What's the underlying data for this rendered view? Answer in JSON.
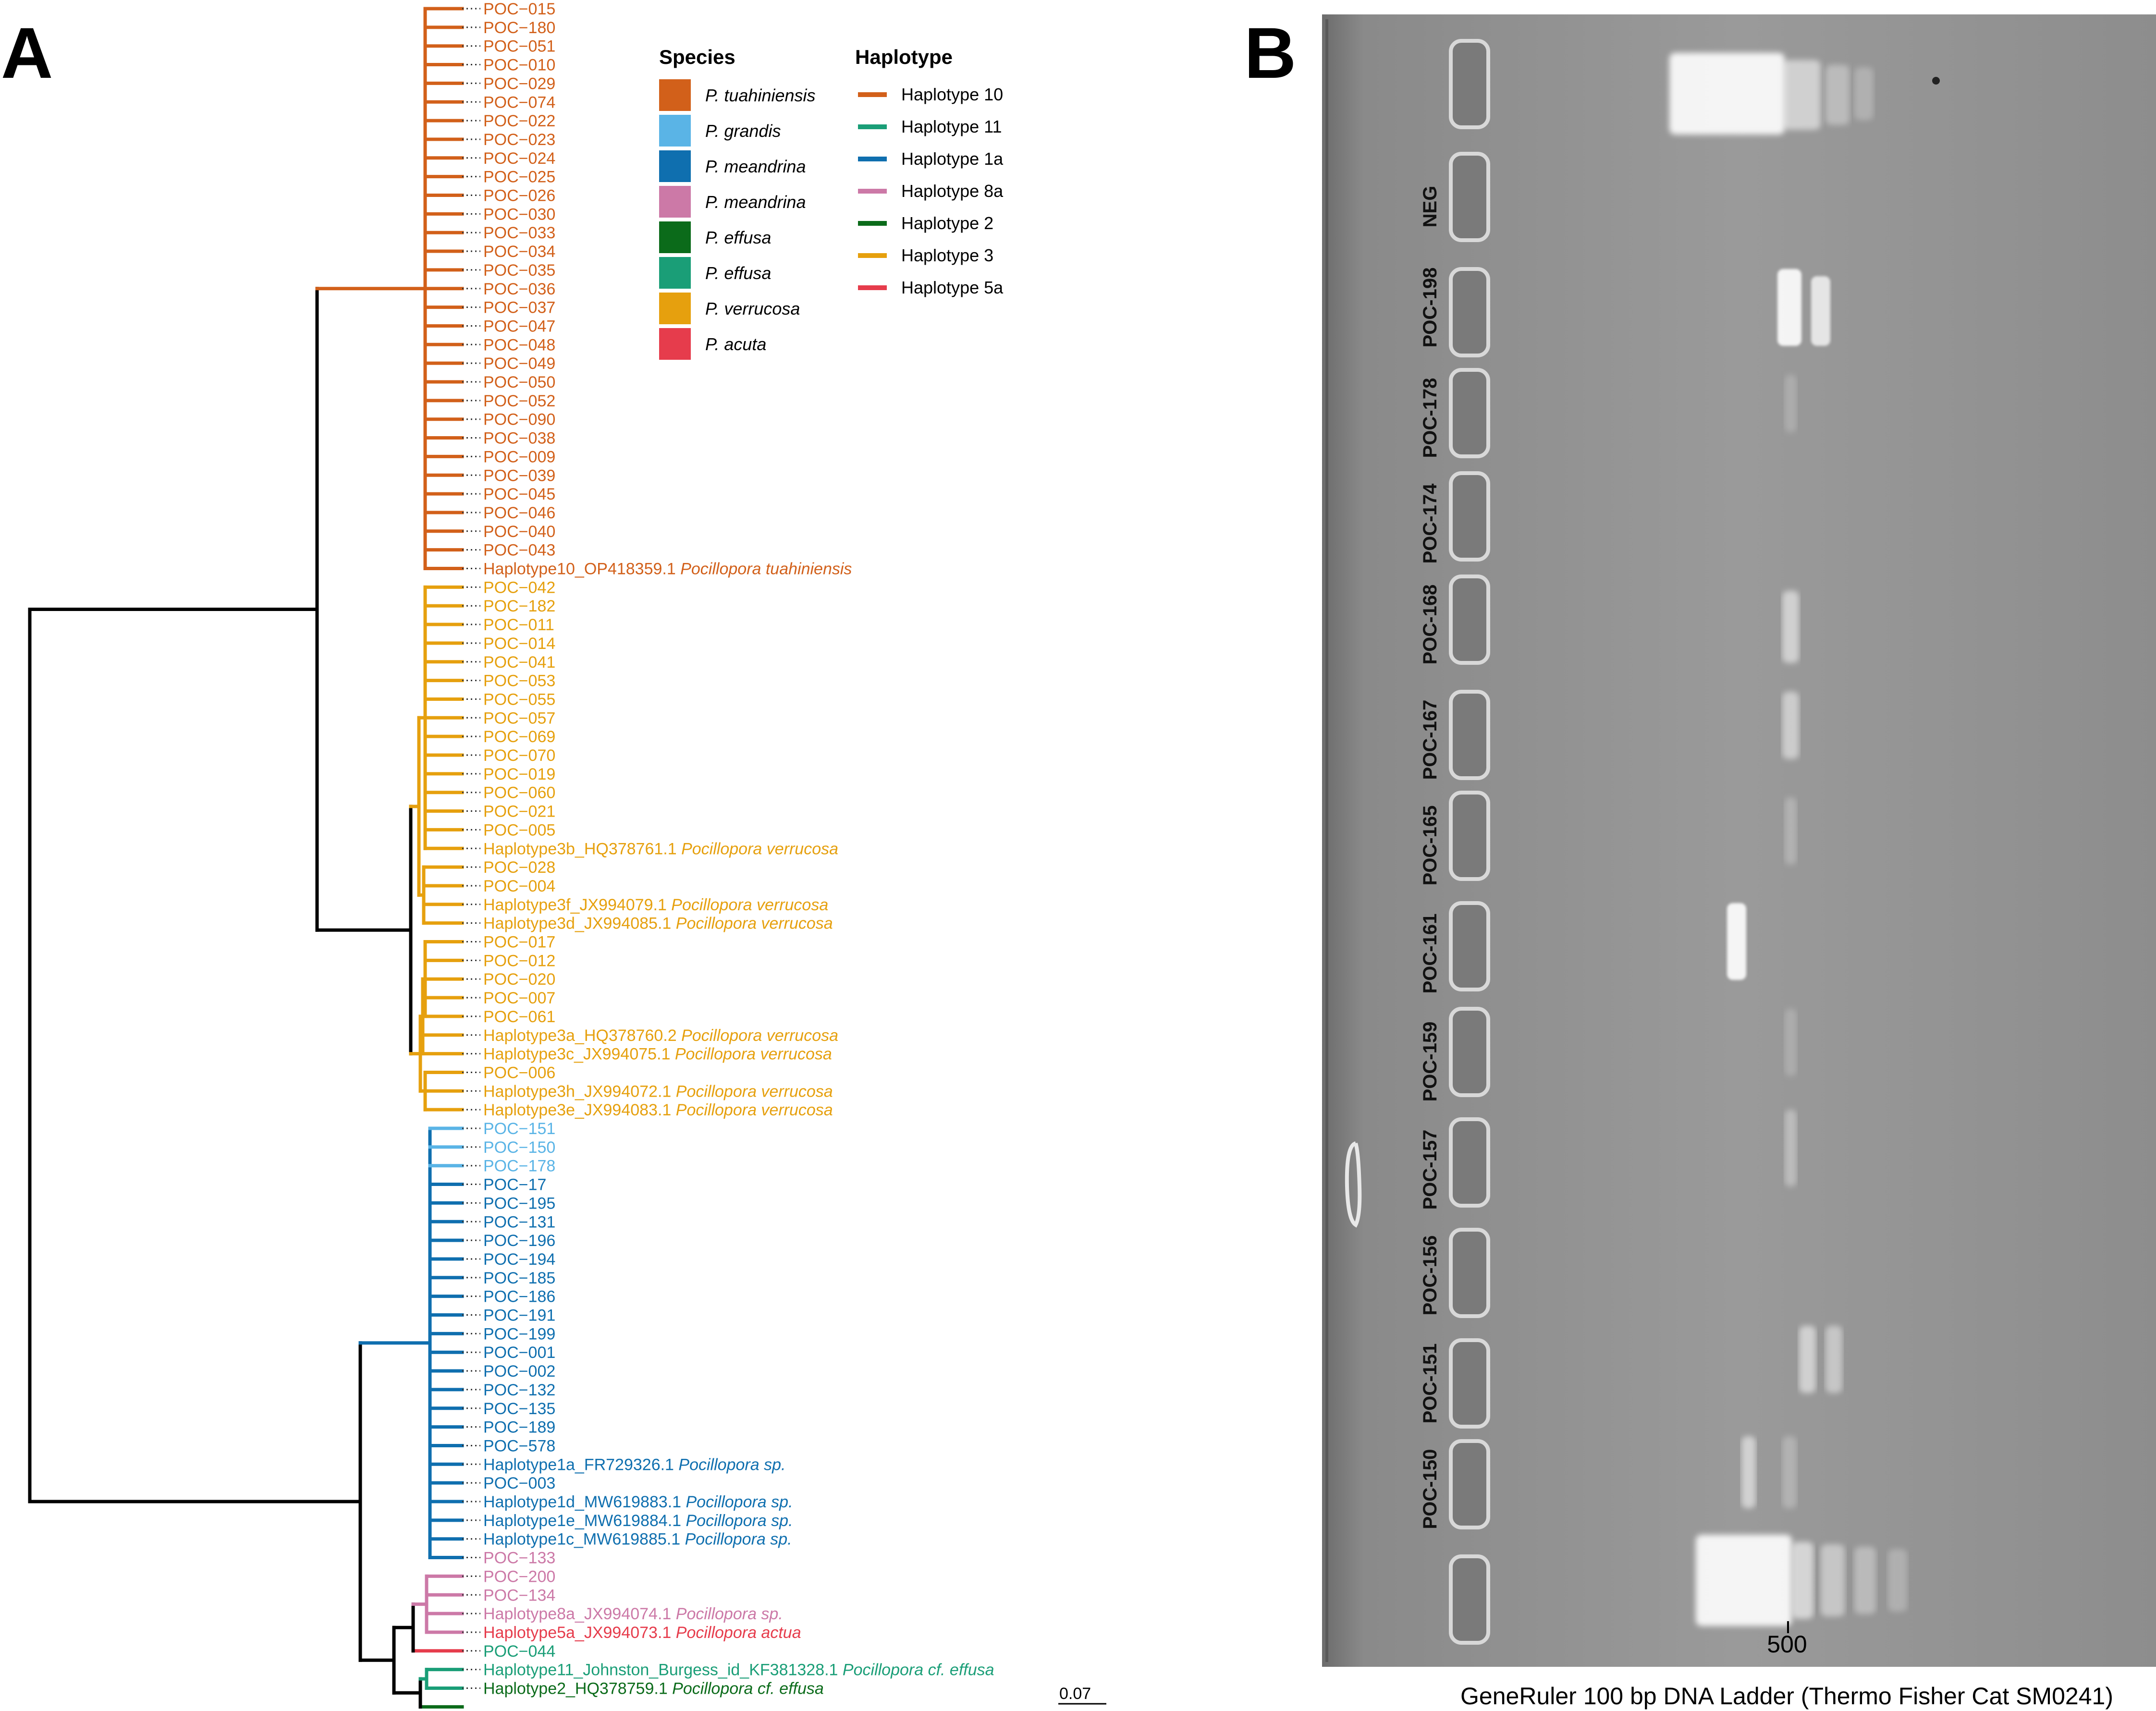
{
  "panel_a": {
    "letter": "A",
    "scale_label": "0.07",
    "legend": {
      "species_title": "Species",
      "haplotype_title": "Haplotype",
      "species": [
        {
          "name": "P. tuahiniensis",
          "color": "#D2601A"
        },
        {
          "name": "P. grandis",
          "color": "#5AB4E6"
        },
        {
          "name": "P. meandrina",
          "color": "#0F6FAF"
        },
        {
          "name": "P. meandrina",
          "color": "#CC79A7"
        },
        {
          "name": "P. effusa",
          "color": "#0B6B1A"
        },
        {
          "name": "P. effusa",
          "color": "#1A9E77"
        },
        {
          "name": "P. verrucosa",
          "color": "#E6A00E"
        },
        {
          "name": "P. acuta",
          "color": "#E63C4C"
        }
      ],
      "haplotypes": [
        {
          "name": "Haplotype 10",
          "color": "#D2601A"
        },
        {
          "name": "Haplotype 11",
          "color": "#1A9E77"
        },
        {
          "name": "Haplotype 1a",
          "color": "#0F6FAF"
        },
        {
          "name": "Haplotype 8a",
          "color": "#CC79A7"
        },
        {
          "name": "Haplotype 2",
          "color": "#0B6B1A"
        },
        {
          "name": "Haplotype 3",
          "color": "#E6A00E"
        },
        {
          "name": "Haplotype 5a",
          "color": "#E63C4C"
        }
      ]
    },
    "tips": [
      {
        "label": "POC−015",
        "species": "",
        "color": "#D2601A"
      },
      {
        "label": "POC−180",
        "species": "",
        "color": "#D2601A"
      },
      {
        "label": "POC−051",
        "species": "",
        "color": "#D2601A"
      },
      {
        "label": "POC−010",
        "species": "",
        "color": "#D2601A"
      },
      {
        "label": "POC−029",
        "species": "",
        "color": "#D2601A"
      },
      {
        "label": "POC−074",
        "species": "",
        "color": "#D2601A"
      },
      {
        "label": "POC−022",
        "species": "",
        "color": "#D2601A"
      },
      {
        "label": "POC−023",
        "species": "",
        "color": "#D2601A"
      },
      {
        "label": "POC−024",
        "species": "",
        "color": "#D2601A"
      },
      {
        "label": "POC−025",
        "species": "",
        "color": "#D2601A"
      },
      {
        "label": "POC−026",
        "species": "",
        "color": "#D2601A"
      },
      {
        "label": "POC−030",
        "species": "",
        "color": "#D2601A"
      },
      {
        "label": "POC−033",
        "species": "",
        "color": "#D2601A"
      },
      {
        "label": "POC−034",
        "species": "",
        "color": "#D2601A"
      },
      {
        "label": "POC−035",
        "species": "",
        "color": "#D2601A"
      },
      {
        "label": "POC−036",
        "species": "",
        "color": "#D2601A"
      },
      {
        "label": "POC−037",
        "species": "",
        "color": "#D2601A"
      },
      {
        "label": "POC−047",
        "species": "",
        "color": "#D2601A"
      },
      {
        "label": "POC−048",
        "species": "",
        "color": "#D2601A"
      },
      {
        "label": "POC−049",
        "species": "",
        "color": "#D2601A"
      },
      {
        "label": "POC−050",
        "species": "",
        "color": "#D2601A"
      },
      {
        "label": "POC−052",
        "species": "",
        "color": "#D2601A"
      },
      {
        "label": "POC−090",
        "species": "",
        "color": "#D2601A"
      },
      {
        "label": "POC−038",
        "species": "",
        "color": "#D2601A"
      },
      {
        "label": "POC−009",
        "species": "",
        "color": "#D2601A"
      },
      {
        "label": "POC−039",
        "species": "",
        "color": "#D2601A"
      },
      {
        "label": "POC−045",
        "species": "",
        "color": "#D2601A"
      },
      {
        "label": "POC−046",
        "species": "",
        "color": "#D2601A"
      },
      {
        "label": "POC−040",
        "species": "",
        "color": "#D2601A"
      },
      {
        "label": "POC−043",
        "species": "",
        "color": "#D2601A"
      },
      {
        "label": "Haplotype10_OP418359.1",
        "species": "Pocillopora tuahiniensis",
        "color": "#D2601A"
      },
      {
        "label": "POC−042",
        "species": "",
        "color": "#E6A00E"
      },
      {
        "label": "POC−182",
        "species": "",
        "color": "#E6A00E"
      },
      {
        "label": "POC−011",
        "species": "",
        "color": "#E6A00E"
      },
      {
        "label": "POC−014",
        "species": "",
        "color": "#E6A00E"
      },
      {
        "label": "POC−041",
        "species": "",
        "color": "#E6A00E"
      },
      {
        "label": "POC−053",
        "species": "",
        "color": "#E6A00E"
      },
      {
        "label": "POC−055",
        "species": "",
        "color": "#E6A00E"
      },
      {
        "label": "POC−057",
        "species": "",
        "color": "#E6A00E"
      },
      {
        "label": "POC−069",
        "species": "",
        "color": "#E6A00E"
      },
      {
        "label": "POC−070",
        "species": "",
        "color": "#E6A00E"
      },
      {
        "label": "POC−019",
        "species": "",
        "color": "#E6A00E"
      },
      {
        "label": "POC−060",
        "species": "",
        "color": "#E6A00E"
      },
      {
        "label": "POC−021",
        "species": "",
        "color": "#E6A00E"
      },
      {
        "label": "POC−005",
        "species": "",
        "color": "#E6A00E"
      },
      {
        "label": "Haplotype3b_HQ378761.1",
        "species": "Pocillopora verrucosa",
        "color": "#E6A00E"
      },
      {
        "label": "POC−028",
        "species": "",
        "color": "#E6A00E"
      },
      {
        "label": "POC−004",
        "species": "",
        "color": "#E6A00E"
      },
      {
        "label": "Haplotype3f_JX994079.1",
        "species": "Pocillopora verrucosa",
        "color": "#E6A00E"
      },
      {
        "label": "Haplotype3d_JX994085.1",
        "species": "Pocillopora verrucosa",
        "color": "#E6A00E"
      },
      {
        "label": "POC−017",
        "species": "",
        "color": "#E6A00E"
      },
      {
        "label": "POC−012",
        "species": "",
        "color": "#E6A00E"
      },
      {
        "label": "POC−020",
        "species": "",
        "color": "#E6A00E"
      },
      {
        "label": "POC−007",
        "species": "",
        "color": "#E6A00E"
      },
      {
        "label": "POC−061",
        "species": "",
        "color": "#E6A00E"
      },
      {
        "label": "Haplotype3a_HQ378760.2",
        "species": "Pocillopora verrucosa",
        "color": "#E6A00E"
      },
      {
        "label": "Haplotype3c_JX994075.1",
        "species": "Pocillopora verrucosa",
        "color": "#E6A00E"
      },
      {
        "label": "POC−006",
        "species": "",
        "color": "#E6A00E"
      },
      {
        "label": "Haplotype3h_JX994072.1",
        "species": "Pocillopora verrucosa",
        "color": "#E6A00E"
      },
      {
        "label": "Haplotype3e_JX994083.1",
        "species": "Pocillopora verrucosa",
        "color": "#E6A00E"
      },
      {
        "label": "POC−151",
        "species": "",
        "color": "#5AB4E6"
      },
      {
        "label": "POC−150",
        "species": "",
        "color": "#5AB4E6"
      },
      {
        "label": "POC−178",
        "species": "",
        "color": "#5AB4E6"
      },
      {
        "label": "POC−17",
        "species": "",
        "color": "#0F6FAF"
      },
      {
        "label": "POC−195",
        "species": "",
        "color": "#0F6FAF"
      },
      {
        "label": "POC−131",
        "species": "",
        "color": "#0F6FAF"
      },
      {
        "label": "POC−196",
        "species": "",
        "color": "#0F6FAF"
      },
      {
        "label": "POC−194",
        "species": "",
        "color": "#0F6FAF"
      },
      {
        "label": "POC−185",
        "species": "",
        "color": "#0F6FAF"
      },
      {
        "label": "POC−186",
        "species": "",
        "color": "#0F6FAF"
      },
      {
        "label": "POC−191",
        "species": "",
        "color": "#0F6FAF"
      },
      {
        "label": "POC−199",
        "species": "",
        "color": "#0F6FAF"
      },
      {
        "label": "POC−001",
        "species": "",
        "color": "#0F6FAF"
      },
      {
        "label": "POC−002",
        "species": "",
        "color": "#0F6FAF"
      },
      {
        "label": "POC−132",
        "species": "",
        "color": "#0F6FAF"
      },
      {
        "label": "POC−135",
        "species": "",
        "color": "#0F6FAF"
      },
      {
        "label": "POC−189",
        "species": "",
        "color": "#0F6FAF"
      },
      {
        "label": "POC−578",
        "species": "",
        "color": "#0F6FAF"
      },
      {
        "label": "Haplotype1a_FR729326.1",
        "species": "Pocillopora sp.",
        "color": "#0F6FAF"
      },
      {
        "label": "POC−003",
        "species": "",
        "color": "#0F6FAF"
      },
      {
        "label": "Haplotype1d_MW619883.1",
        "species": "Pocillopora sp.",
        "color": "#0F6FAF"
      },
      {
        "label": "Haplotype1e_MW619884.1",
        "species": "Pocillopora sp.",
        "color": "#0F6FAF"
      },
      {
        "label": "Haplotype1c_MW619885.1",
        "species": "Pocillopora sp.",
        "color": "#0F6FAF"
      },
      {
        "label": "POC−133",
        "species": "",
        "color": "#CC79A7"
      },
      {
        "label": "POC−200",
        "species": "",
        "color": "#CC79A7"
      },
      {
        "label": "POC−134",
        "species": "",
        "color": "#CC79A7"
      },
      {
        "label": "Haplotype8a_JX994074.1",
        "species": "Pocillopora sp.",
        "color": "#CC79A7"
      },
      {
        "label": "Haplotype5a_JX994073.1",
        "species": "Pocillopora actua",
        "color": "#E63C4C"
      },
      {
        "label": "POC−044",
        "species": "",
        "color": "#1A9E77"
      },
      {
        "label": "Haplotype11_Johnston_Burgess_id_KF381328.1",
        "species": "Pocillopora cf. effusa",
        "color": "#1A9E77"
      },
      {
        "label": "Haplotype2_HQ378759.1",
        "species": "Pocillopora cf. effusa",
        "color": "#0B6B1A"
      }
    ]
  },
  "panel_b": {
    "letter": "B",
    "lane_labels": [
      "NEG",
      "POC-198",
      "POC-178",
      "POC-174",
      "POC-168",
      "POC-167",
      "POC-165",
      "POC-161",
      "POC-159",
      "POC-157",
      "POC-156",
      "POC-151",
      "POC-150"
    ],
    "ladder_mark": "500",
    "caption": "GeneRuler 100 bp DNA Ladder (Thermo Fisher Cat SM0241)"
  }
}
